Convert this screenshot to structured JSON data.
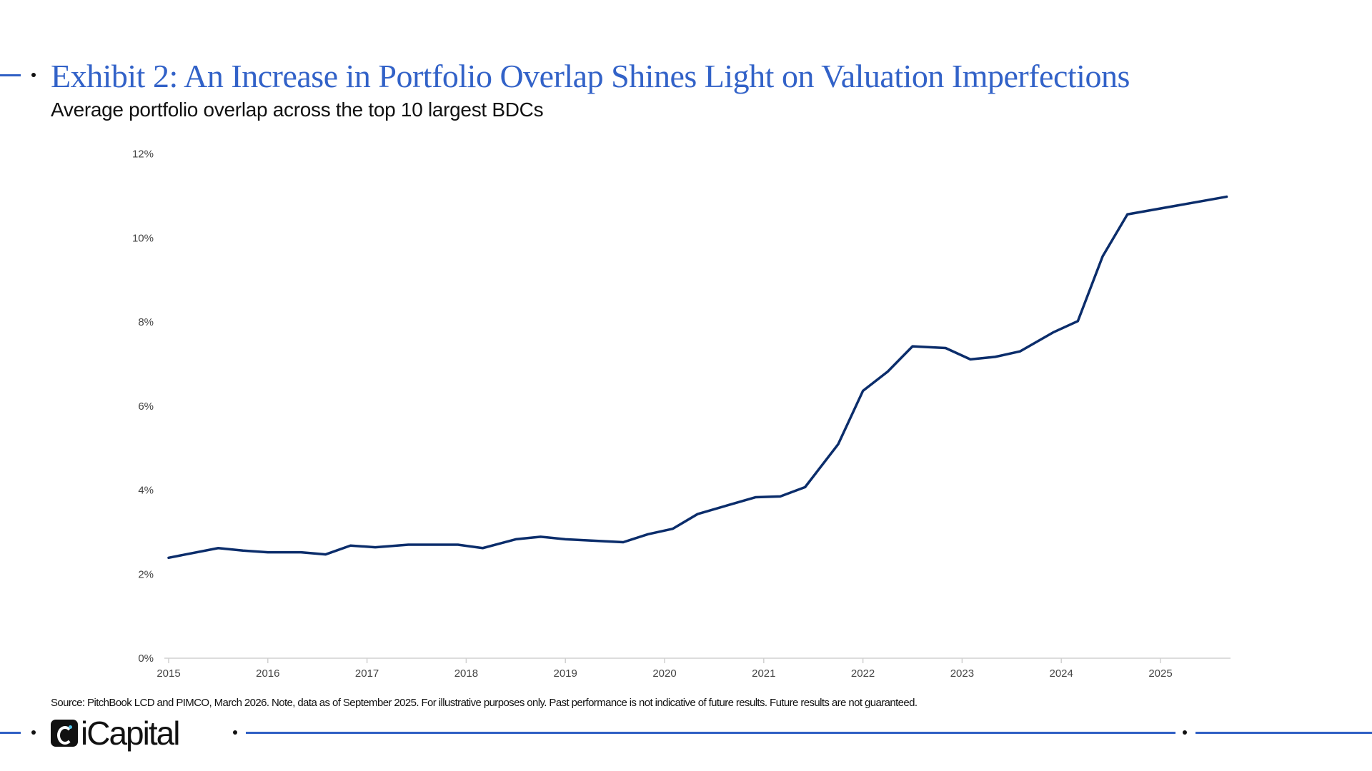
{
  "header": {
    "title": "Exhibit 2: An Increase in Portfolio Overlap Shines Light on Valuation Imperfections",
    "subtitle": "Average portfolio overlap across the top 10 largest BDCs"
  },
  "footer": {
    "source": "Source: PitchBook LCD and PIMCO, March 2026. Note, data as of September 2025. For illustrative purposes only. Past performance is not indicative of future results. Future results are not guaranteed.",
    "logo_text": "iCapital"
  },
  "colors": {
    "title": "#3262c8",
    "line": "#0b2d6b",
    "accent_rule": "#2f5fc4"
  },
  "chart_data": {
    "type": "line",
    "title": "",
    "xlabel": "",
    "ylabel": "",
    "x_ticks": [
      "2015",
      "2016",
      "2017",
      "2018",
      "2019",
      "2020",
      "2021",
      "2022",
      "2023",
      "2024",
      "2025"
    ],
    "y_ticks": [
      "0%",
      "2%",
      "4%",
      "6%",
      "8%",
      "10%",
      "12%"
    ],
    "ylim": [
      0,
      12
    ],
    "grid": false,
    "legend": "none",
    "series": [
      {
        "x": [
          "2015-01",
          "2015-07",
          "2015-10",
          "2016-01",
          "2016-05",
          "2016-08",
          "2016-11",
          "2017-02",
          "2017-06",
          "2017-12",
          "2018-03",
          "2018-07",
          "2018-10",
          "2019-01",
          "2019-05",
          "2019-08",
          "2019-11",
          "2020-02",
          "2020-05",
          "2020-09",
          "2020-12",
          "2021-03",
          "2021-06",
          "2021-10",
          "2022-01",
          "2022-04",
          "2022-07",
          "2022-11",
          "2023-02",
          "2023-05",
          "2023-08",
          "2023-12",
          "2024-03",
          "2024-06",
          "2024-09",
          "2025-09"
        ],
        "y": [
          2.39,
          2.62,
          2.56,
          2.52,
          2.52,
          2.47,
          2.68,
          2.64,
          2.7,
          2.7,
          2.62,
          2.83,
          2.89,
          2.83,
          2.79,
          2.76,
          2.95,
          3.08,
          3.43,
          3.66,
          3.83,
          3.85,
          4.07,
          5.09,
          6.36,
          6.82,
          7.42,
          7.38,
          7.11,
          7.17,
          7.3,
          7.75,
          8.02,
          9.56,
          10.56,
          10.98
        ]
      }
    ]
  }
}
